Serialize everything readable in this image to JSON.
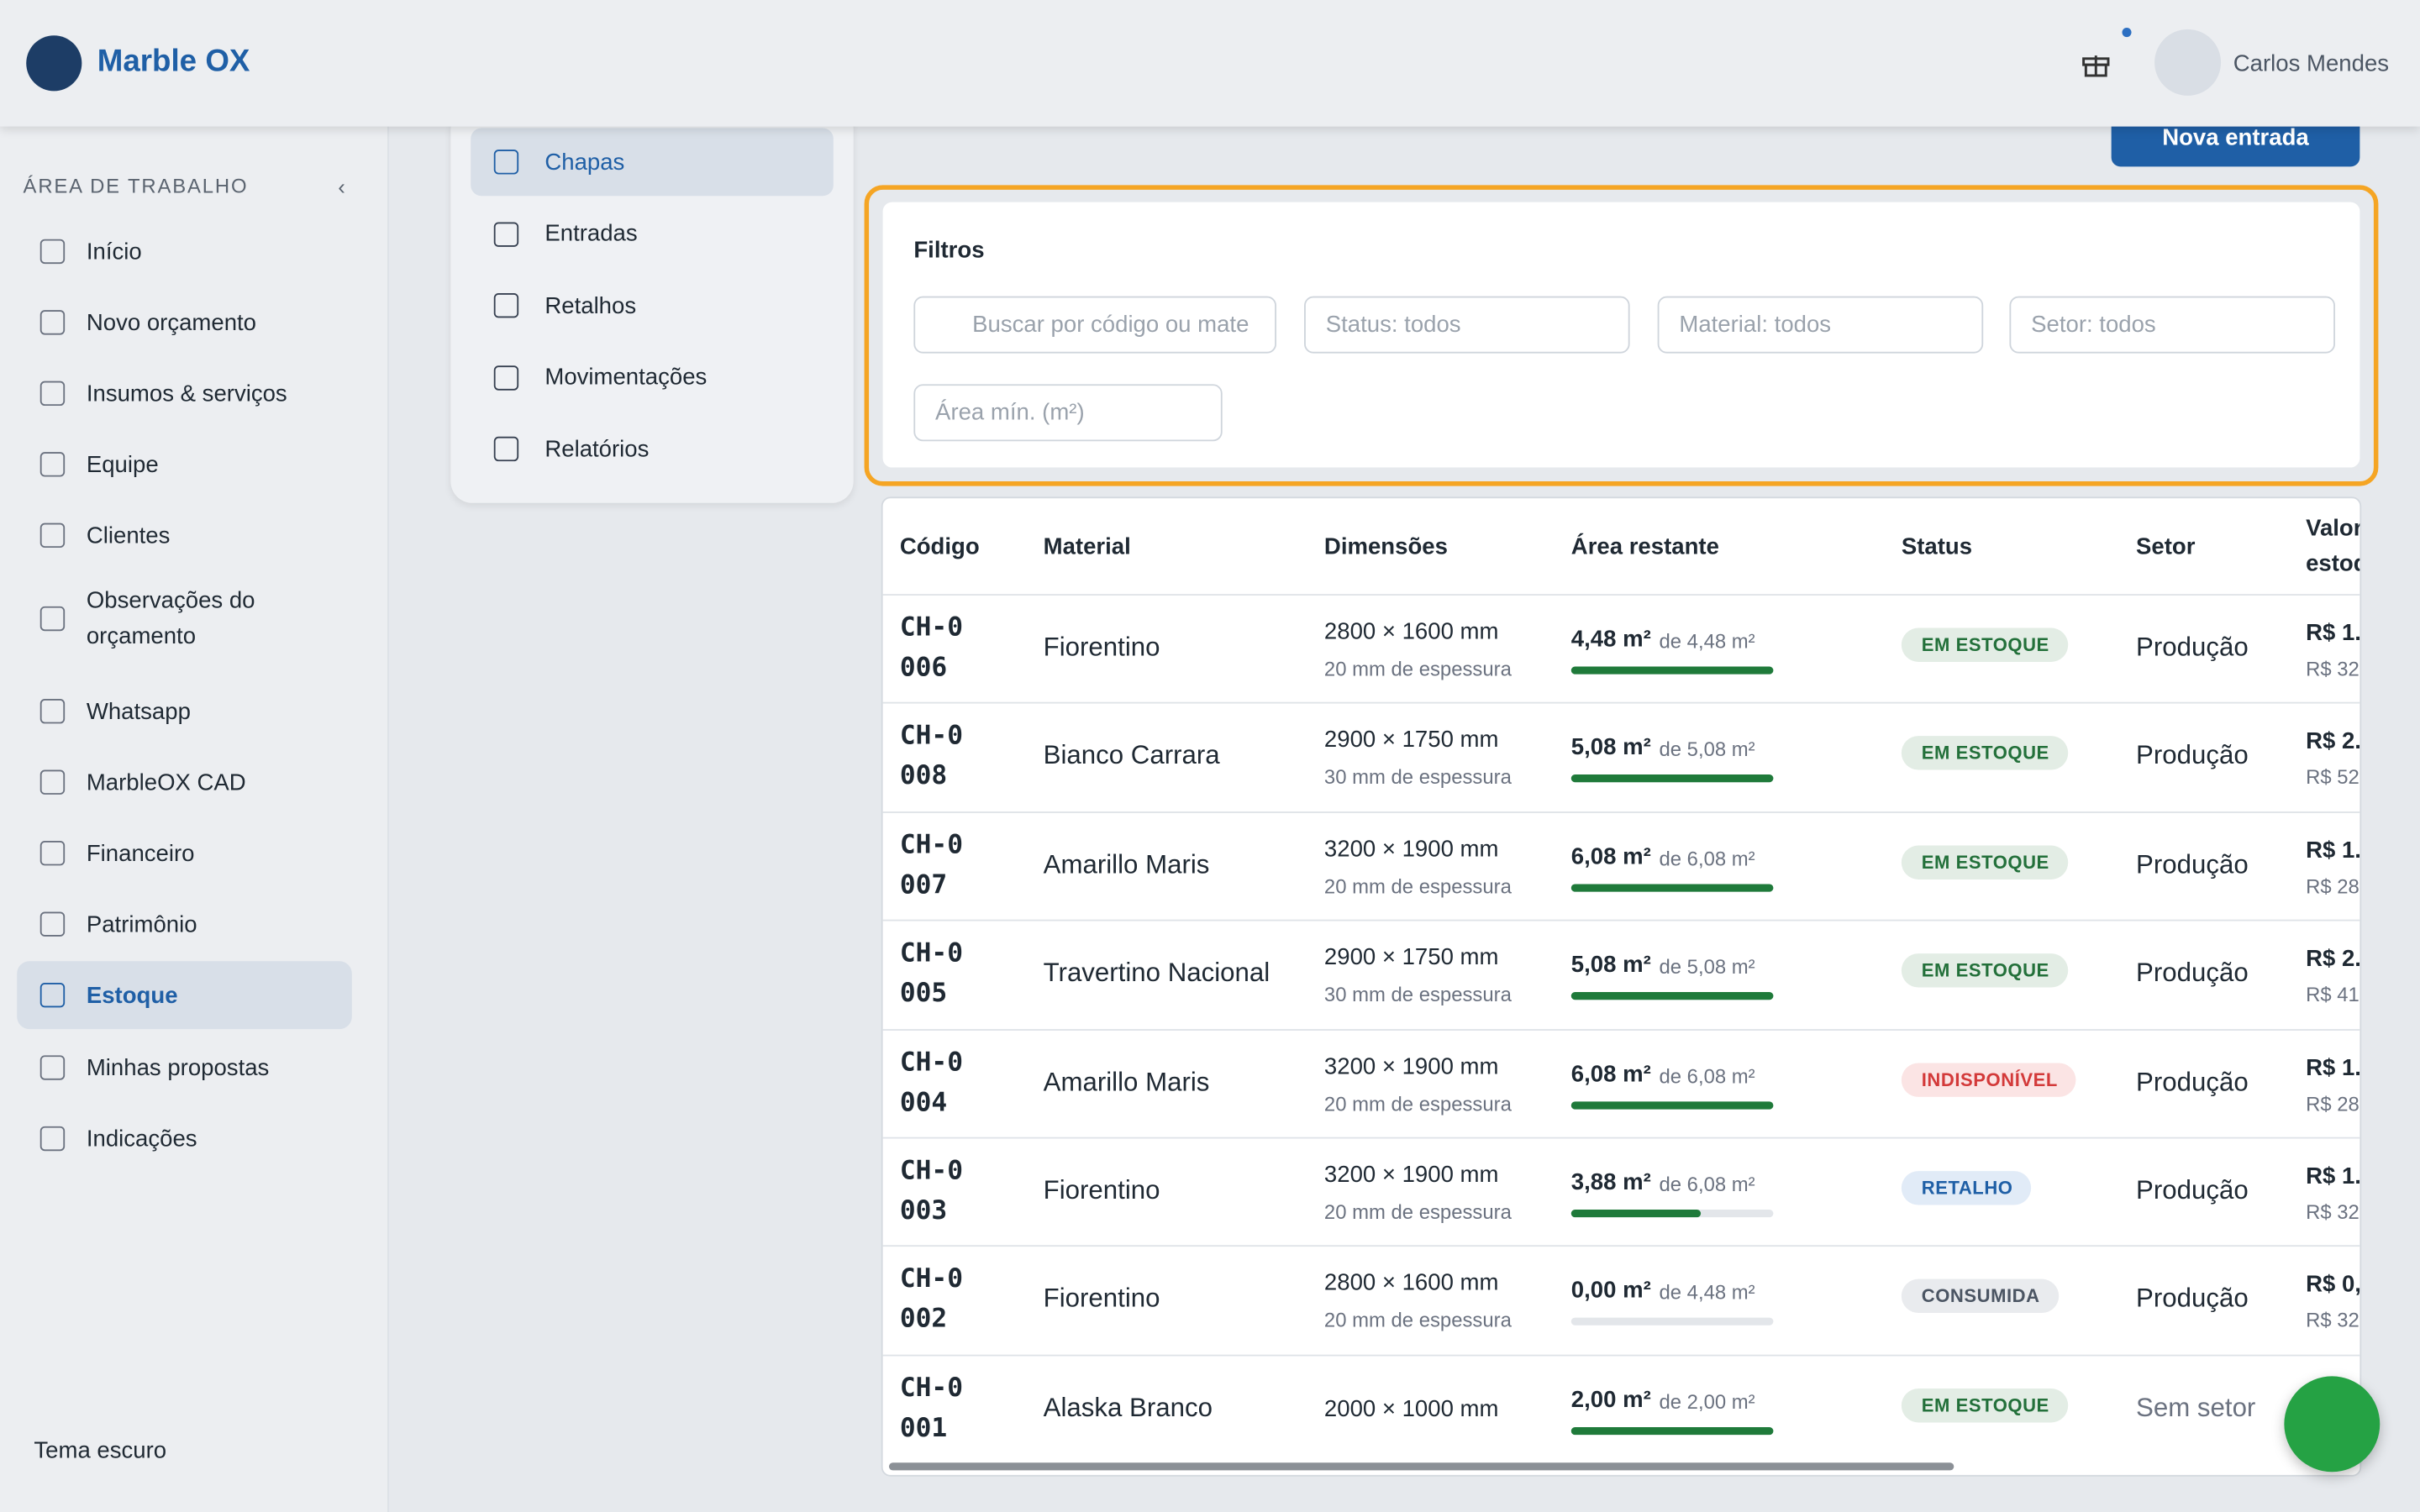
{
  "header": {
    "brand": "Marble OX",
    "user": "Carlos Mendes"
  },
  "sidebar": {
    "section": "ÁREA DE TRABALHO",
    "items": [
      "Início",
      "Novo orçamento",
      "Insumos & serviços",
      "Equipe",
      "Clientes",
      "Observações do orçamento",
      "Whatsapp",
      "MarbleOX CAD",
      "Financeiro",
      "Patrimônio",
      "Estoque",
      "Minhas propostas",
      "Indicações"
    ],
    "active": "Estoque",
    "theme": "Tema escuro"
  },
  "subnav": {
    "items": [
      "Chapas",
      "Entradas",
      "Retalhos",
      "Movimentações",
      "Relatórios"
    ],
    "active": "Chapas"
  },
  "new_button": "Nova entrada",
  "filters": {
    "title": "Filtros",
    "search": "Buscar por código ou mate",
    "status": "Status: todos",
    "material": "Material: todos",
    "sector": "Setor: todos",
    "area": "Área mín. (m²)"
  },
  "table": {
    "headers": [
      "Código",
      "Material",
      "Dimensões",
      "Área restante",
      "Status",
      "Setor",
      "Valor estoque"
    ],
    "rows": [
      [
        "CH-0006",
        "Fiorentino",
        "2800 × 1600 mm",
        "20 mm de espessura",
        "4,48 m²",
        "de 4,48 m²",
        "EM ESTOQUE",
        "Produção",
        "R$ 1.",
        "R$ 32"
      ],
      [
        "CH-0008",
        "Bianco Carrara",
        "2900 × 1750 mm",
        "30 mm de espessura",
        "5,08 m²",
        "de 5,08 m²",
        "EM ESTOQUE",
        "Produção",
        "R$ 2.",
        "R$ 52"
      ],
      [
        "CH-0007",
        "Amarillo Maris",
        "3200 × 1900 mm",
        "20 mm de espessura",
        "6,08 m²",
        "de 6,08 m²",
        "EM ESTOQUE",
        "Produção",
        "R$ 1.",
        "R$ 28"
      ],
      [
        "CH-0005",
        "Travertino Nacional",
        "2900 × 1750 mm",
        "30 mm de espessura",
        "5,08 m²",
        "de 5,08 m²",
        "EM ESTOQUE",
        "Produção",
        "R$ 2.",
        "R$ 41"
      ],
      [
        "CH-0004",
        "Amarillo Maris",
        "3200 × 1900 mm",
        "20 mm de espessura",
        "6,08 m²",
        "de 6,08 m²",
        "INDISPONÍVEL",
        "Produção",
        "R$ 1.",
        "R$ 28"
      ],
      [
        "CH-0003",
        "Fiorentino",
        "3200 × 1900 mm",
        "20 mm de espessura",
        "3,88 m²",
        "de 6,08 m²",
        "RETALHO",
        "Produção",
        "R$ 1.",
        "R$ 32"
      ],
      [
        "CH-0002",
        "Fiorentino",
        "2800 × 1600 mm",
        "20 mm de espessura",
        "0,00 m²",
        "de 4,48 m²",
        "CONSUMIDA",
        "Produção",
        "R$ 0,",
        "R$ 32"
      ],
      [
        "CH-0001",
        "Alaska Branco",
        "2000 × 1000 mm",
        null,
        "2,00 m²",
        "de 2,00 m²",
        "EM ESTOQUE",
        "Sem setor",
        "",
        ""
      ]
    ]
  }
}
